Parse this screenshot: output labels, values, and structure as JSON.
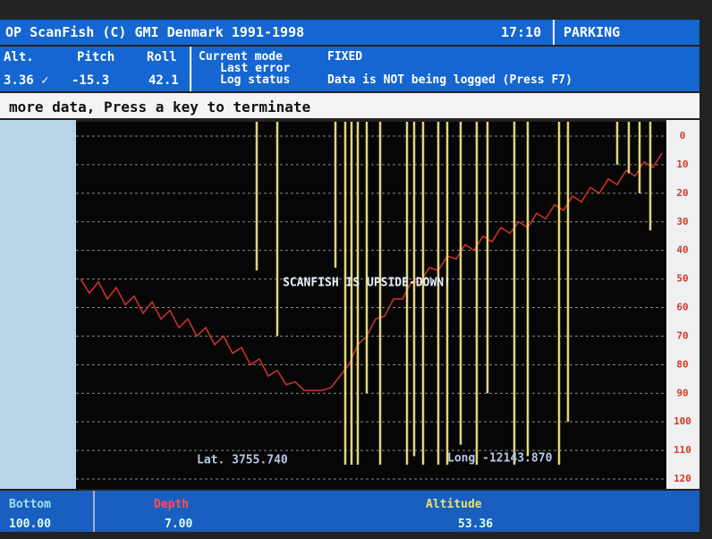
{
  "header": {
    "title": "OP ScanFish (C) GMI Denmark 1991-1998",
    "time": "17:10",
    "status": "PARKING"
  },
  "instruments": {
    "labels": [
      "Alt.",
      "Pitch",
      "Roll"
    ],
    "values": [
      "3.36 ✓",
      "-15.3",
      "42.1"
    ]
  },
  "mode": {
    "current_label": "Current mode",
    "current_value": "FIXED",
    "error_label": "Last error",
    "log_label": "Log status",
    "log_value": "Data is NOT being logged (Press F7)"
  },
  "message": "more data, Press a key to terminate",
  "plot": {
    "type": "line",
    "warning": "SCANFISH IS UPSIDE-DOWN!",
    "lat": "Lat. 3755.740",
    "lon": "Long -12143.870",
    "ylim": [
      0,
      120
    ],
    "yticks": [
      0,
      10,
      20,
      30,
      40,
      50,
      60,
      70,
      80,
      90,
      100,
      110,
      120
    ],
    "xlim": [
      0,
      65
    ],
    "grid": true,
    "series": [
      {
        "color": "#c8322a",
        "values": [
          50,
          55,
          51,
          57,
          53,
          59,
          56,
          62,
          58,
          64,
          61,
          67,
          64,
          70,
          67,
          73,
          70,
          76,
          74,
          80,
          78,
          84,
          82,
          87,
          86,
          89,
          89,
          89,
          88,
          84,
          80,
          73,
          70,
          64,
          63,
          57,
          57,
          51,
          51,
          46,
          47,
          42,
          43,
          38,
          40,
          35,
          37,
          32,
          34,
          30,
          32,
          27,
          29,
          24,
          26,
          21,
          23,
          18,
          20,
          15,
          17,
          12,
          14,
          9,
          11,
          6
        ]
      }
    ],
    "spikes": {
      "color": "#e2d67a",
      "x": [
        19.7,
        22,
        28.5,
        29.6,
        30.3,
        31,
        32,
        33.5,
        36.5,
        37.3,
        38.3,
        40,
        41,
        42.5,
        44.3,
        45.5,
        48.5,
        50,
        53.5,
        54.5,
        60,
        61.3,
        62.5,
        63.7
      ],
      "bottom": [
        47,
        70,
        46,
        115,
        115,
        115,
        90,
        115,
        115,
        112,
        115,
        115,
        115,
        108,
        115,
        90,
        115,
        112,
        115,
        100,
        10,
        13,
        20,
        33
      ]
    }
  },
  "footer": {
    "bottom_label": "Bottom",
    "bottom_value": "100.00",
    "depth_label": "Depth",
    "depth_value": "7.00",
    "altitude_label": "Altitude",
    "altitude_value": "53.36"
  }
}
